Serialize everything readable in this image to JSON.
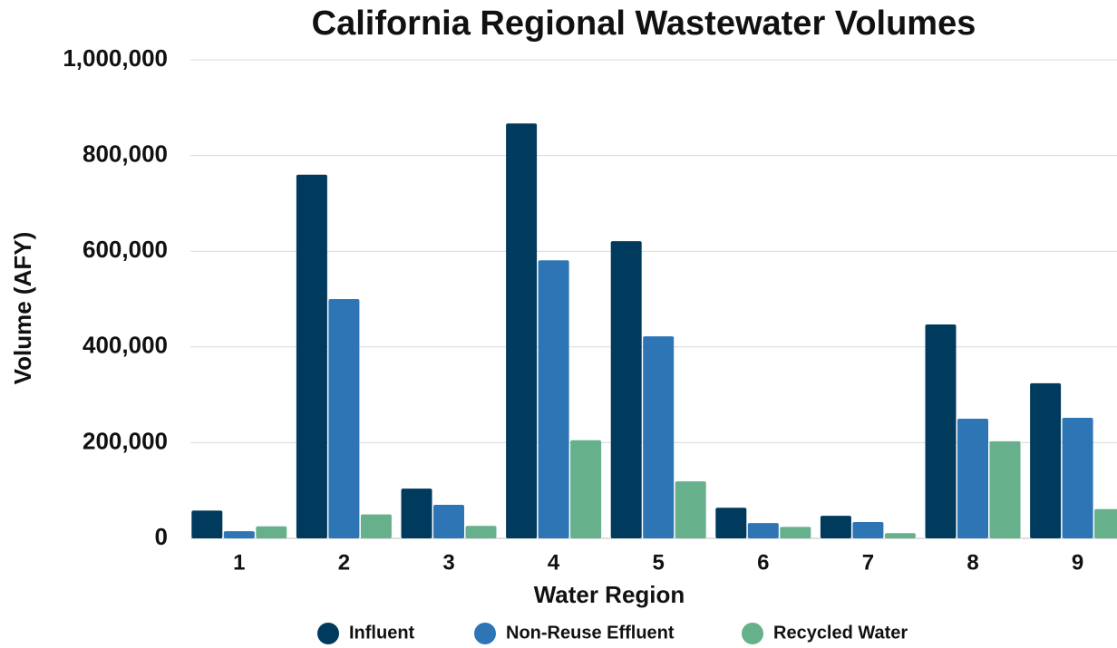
{
  "chart_data": {
    "type": "bar",
    "title": "California Regional Wastewater Volumes",
    "x_label": "Water Region",
    "y_label": "Volume (AFY)",
    "categories": [
      "1",
      "2",
      "3",
      "4",
      "5",
      "6",
      "7",
      "8",
      "9"
    ],
    "series": [
      {
        "name": "Influent",
        "color": "#003a5d",
        "values": [
          58000,
          760000,
          104000,
          867000,
          621000,
          64000,
          47000,
          447000,
          324000
        ]
      },
      {
        "name": "Non-Reuse Effluent",
        "color": "#2e75b6",
        "values": [
          15000,
          500000,
          70000,
          581000,
          422000,
          32000,
          34000,
          250000,
          252000
        ]
      },
      {
        "name": "Recycled Water",
        "color": "#66b08c",
        "values": [
          25000,
          50000,
          26000,
          205000,
          119000,
          24000,
          11000,
          203000,
          61000
        ]
      }
    ],
    "ylim": [
      0,
      1000000
    ],
    "yticks": [
      0,
      {
        "value": 200000,
        "label": "200,000"
      },
      {
        "value": 400000,
        "label": "400,000"
      },
      {
        "value": 600000,
        "label": "600,000"
      },
      {
        "value": 800000,
        "label": "800,000"
      },
      {
        "value": 1000000,
        "label": "1,000,000"
      }
    ],
    "grid": true,
    "legend": "bottom"
  }
}
